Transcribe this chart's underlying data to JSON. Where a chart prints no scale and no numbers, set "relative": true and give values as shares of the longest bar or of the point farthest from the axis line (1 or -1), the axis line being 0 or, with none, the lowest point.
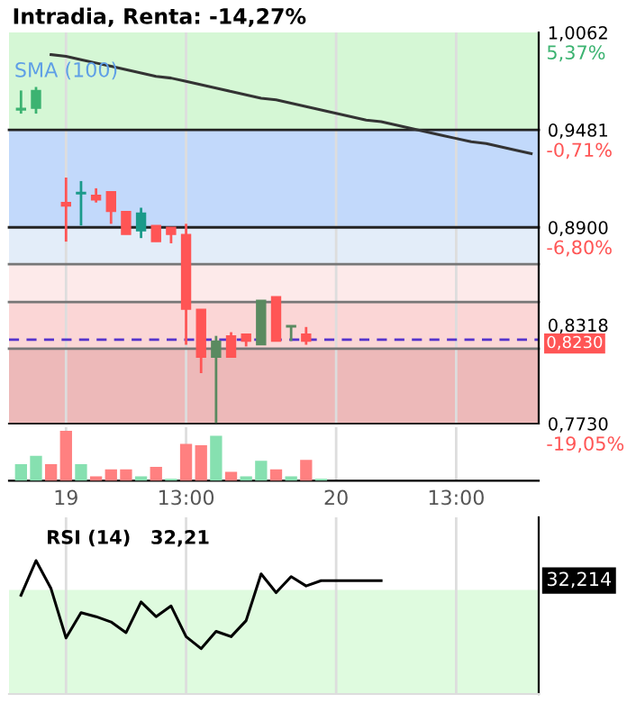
{
  "chart_data": [
    {
      "type": "candlestick",
      "title": "Intradia, Renta: -14,27%",
      "categories": [
        null,
        null,
        null,
        null,
        null,
        null,
        null,
        null,
        null,
        null,
        null,
        null,
        null,
        null,
        null,
        null,
        null,
        null,
        null,
        null,
        null,
        null,
        null,
        null,
        null,
        null,
        null,
        null,
        null,
        null,
        null,
        null,
        null,
        null,
        null
      ],
      "ohlc": [
        [
          0.96,
          0.9716,
          0.9578,
          0.961
        ],
        [
          0.961,
          0.9737,
          0.9578,
          0.9716
        ],
        null,
        [
          0.9048,
          0.9197,
          0.8815,
          0.9027
        ],
        [
          0.91,
          0.9176,
          0.8911,
          0.9107
        ],
        [
          0.9091,
          0.9133,
          0.9048,
          0.9064
        ],
        [
          0.9112,
          0.9112,
          0.8921,
          0.8995
        ],
        [
          0.8995,
          0.8995,
          0.8858,
          0.8858
        ],
        [
          0.8879,
          0.9017,
          0.8836,
          0.8985
        ],
        [
          0.8911,
          0.8911,
          0.8815,
          0.8815
        ],
        [
          0.89,
          0.89,
          0.8805,
          0.8858
        ],
        [
          0.8858,
          0.8921,
          0.82,
          0.8412
        ],
        [
          0.8412,
          0.8412,
          0.8031,
          0.8126
        ],
        [
          0.8126,
          0.8253,
          0.7734,
          0.8222
        ],
        [
          0.8253,
          0.8275,
          0.8126,
          0.8126
        ],
        [
          0.8264,
          0.8264,
          0.819,
          0.8222
        ],
        [
          0.82,
          0.8465,
          0.82,
          0.8465
        ],
        [
          0.8487,
          0.8487,
          0.8222,
          0.8222
        ],
        [
          0.8306,
          0.8306,
          0.8222,
          0.8306
        ],
        [
          0.8264,
          0.8306,
          0.82,
          0.8222
        ],
        null,
        null,
        null,
        null,
        null,
        null,
        null,
        null,
        null,
        null,
        null,
        null,
        null,
        null,
        null
      ],
      "colors": [
        "#3cb371",
        "#3cb371",
        null,
        "#ff5555",
        "#1a9a8a",
        "#ff5555",
        "#ff5555",
        "#ff5555",
        "#1a9a8a",
        "#ff5555",
        "#ff5555",
        "#ff5555",
        "#ff5555",
        "#5a8a60",
        "#ff5555",
        "#ff5555",
        "#5a8a60",
        "#ff5555",
        "#5a8a60",
        "#ff5555",
        null,
        null,
        null,
        null,
        null,
        null,
        null,
        null,
        null,
        null,
        null,
        null,
        null,
        null,
        null
      ],
      "series": [
        {
          "name": "SMA (100)",
          "type": "line",
          "color": "#333333",
          "values": [
            null,
            null,
            0.993,
            0.992,
            0.99,
            0.988,
            0.986,
            0.984,
            0.982,
            0.98,
            0.979,
            0.977,
            0.975,
            0.973,
            0.971,
            0.969,
            0.967,
            0.966,
            0.964,
            0.962,
            0.96,
            0.958,
            0.956,
            0.954,
            0.953,
            0.951,
            0.949,
            0.947,
            0.945,
            0.943,
            0.941,
            0.94,
            0.938,
            0.936,
            0.934
          ]
        }
      ],
      "ylim": [
        0.773,
        1.0062
      ],
      "yticks": [
        {
          "value": 1.0062,
          "label": "1,0062"
        },
        {
          "value": 0.9481,
          "label": "0,9481"
        },
        {
          "value": 0.89,
          "label": "0,8900"
        },
        {
          "value": 0.8318,
          "label": "0,8318"
        },
        {
          "value": 0.773,
          "label": "0,7730"
        }
      ],
      "bands": [
        {
          "axis": "y",
          "from": 0.9481,
          "to": 1.0062,
          "color": "#d5f7d5"
        },
        {
          "axis": "y",
          "from": 0.89,
          "to": 0.9481,
          "color": "#c2d9fb"
        },
        {
          "axis": "y",
          "from": 0.868,
          "to": 0.89,
          "color": "#e3edf9"
        },
        {
          "axis": "y",
          "from": 0.8455,
          "to": 0.868,
          "color": "#fdeaea"
        },
        {
          "axis": "y",
          "from": 0.8177,
          "to": 0.8455,
          "color": "#fbd6d6"
        },
        {
          "axis": "y",
          "from": 0.773,
          "to": 0.8177,
          "color": "#edb9b9"
        }
      ],
      "ref_lines": [
        {
          "axis": "y",
          "value": 0.9481,
          "color": "#222222"
        },
        {
          "axis": "y",
          "value": 0.89,
          "color": "#222222"
        },
        {
          "axis": "y",
          "value": 0.868,
          "color": "#777777"
        },
        {
          "axis": "y",
          "value": 0.8455,
          "color": "#777777"
        },
        {
          "axis": "y",
          "value": 0.8177,
          "color": "#777777"
        },
        {
          "axis": "y",
          "value": 0.823,
          "label": "0,8230",
          "color": "#5533cc",
          "line_style": "dashed"
        }
      ],
      "annotations": [
        "5,37%",
        "-0,71%",
        "-6,80%",
        "-19,05%"
      ],
      "grid": "x",
      "tick_labels": "y"
    },
    {
      "type": "bar",
      "relative": true,
      "categories": [
        null,
        null,
        null,
        "19",
        null,
        null,
        null,
        null,
        null,
        null,
        null,
        "13:00",
        null,
        null,
        null,
        null,
        null,
        null,
        null,
        null,
        null,
        "20",
        null,
        null,
        null,
        null,
        null,
        null,
        null,
        "13:00",
        null,
        null,
        null,
        null,
        null
      ],
      "values": [
        0.33,
        0.5,
        0.33,
        1.0,
        0.33,
        0.09,
        0.23,
        0.23,
        0.09,
        0.28,
        0.04,
        0.74,
        0.71,
        0.9,
        0.18,
        0.09,
        0.4,
        0.23,
        0.09,
        0.42,
        0.04,
        null,
        null,
        null,
        null,
        null,
        null,
        null,
        null,
        null,
        null,
        null,
        null,
        null,
        null
      ],
      "colors": [
        "#86e0b0",
        "#86e0b0",
        "#ff8080",
        "#ff8080",
        "#86e0b0",
        "#ff8080",
        "#ff8080",
        "#ff8080",
        "#86e0b0",
        "#ff8080",
        "#86e0b0",
        "#ff8080",
        "#ff8080",
        "#86e0b0",
        "#ff8080",
        "#86e0b0",
        "#86e0b0",
        "#ff8080",
        "#86e0b0",
        "#ff8080",
        "#86e0b0",
        null,
        null,
        null,
        null,
        null,
        null,
        null,
        null,
        null,
        null,
        null,
        null,
        null,
        null
      ],
      "tick_labels": "x",
      "grid": "x"
    },
    {
      "type": "line",
      "relative": true,
      "title": "RSI (14)   32,21",
      "categories": [
        null,
        null,
        null,
        null,
        null,
        null,
        null,
        null,
        null,
        null,
        null,
        null,
        null,
        null,
        null,
        null,
        null,
        null,
        null,
        null,
        null,
        null,
        null,
        null,
        null,
        null,
        null,
        null,
        null,
        null,
        null,
        null,
        null,
        null,
        null
      ],
      "series": [
        {
          "color": "#000000",
          "values": [
            0.74,
            1.0,
            0.79,
            0.42,
            0.61,
            0.58,
            0.54,
            0.46,
            0.69,
            0.58,
            0.66,
            0.43,
            0.34,
            0.47,
            0.43,
            0.55,
            0.9,
            0.76,
            0.88,
            0.81,
            0.85,
            0.85,
            0.85,
            0.85,
            0.85,
            null,
            null,
            null,
            null,
            null,
            null,
            null,
            null,
            null,
            null
          ]
        }
      ],
      "bands": [
        {
          "axis": "y",
          "from": 0.78,
          "to": 0.0,
          "color": "#dffbdf"
        }
      ],
      "annotations": [
        "32,214"
      ],
      "tick_labels": false,
      "grid": "x"
    }
  ]
}
